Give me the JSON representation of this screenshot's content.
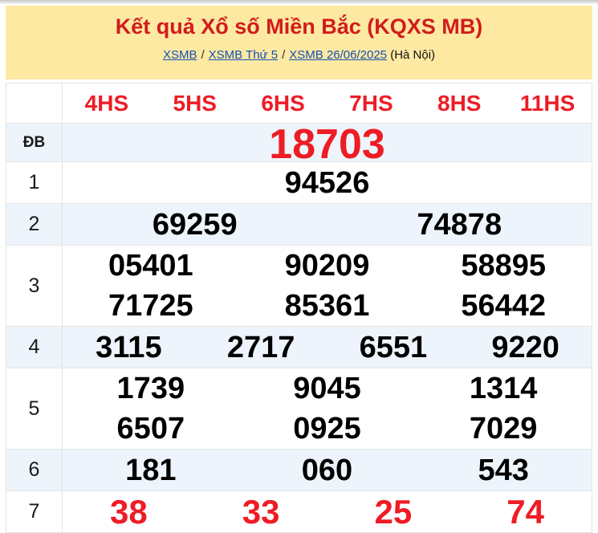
{
  "page": {
    "title": "Kết quả Xổ số Miền Bắc (KQXS MB)",
    "breadcrumb": {
      "items": [
        {
          "label": "XSMB"
        },
        {
          "label": "XSMB Thứ 5"
        },
        {
          "label": "XSMB 26/06/2025"
        }
      ],
      "separator": "/",
      "location": "(Hà Nội)"
    }
  },
  "results_table": {
    "column_headers": [
      "4HS",
      "5HS",
      "6HS",
      "7HS",
      "8HS",
      "11HS"
    ],
    "rows": [
      {
        "label": "ĐB",
        "lines": [
          [
            "18703"
          ]
        ]
      },
      {
        "label": "1",
        "lines": [
          [
            "94526"
          ]
        ]
      },
      {
        "label": "2",
        "lines": [
          [
            "69259",
            "74878"
          ]
        ]
      },
      {
        "label": "3",
        "lines": [
          [
            "05401",
            "90209",
            "58895"
          ],
          [
            "71725",
            "85361",
            "56442"
          ]
        ]
      },
      {
        "label": "4",
        "lines": [
          [
            "3115",
            "2717",
            "6551",
            "9220"
          ]
        ]
      },
      {
        "label": "5",
        "lines": [
          [
            "1739",
            "9045",
            "1314"
          ],
          [
            "6507",
            "0925",
            "7029"
          ]
        ]
      },
      {
        "label": "6",
        "lines": [
          [
            "181",
            "060",
            "543"
          ]
        ]
      },
      {
        "label": "7",
        "lines": [
          [
            "38",
            "33",
            "25",
            "74"
          ]
        ]
      }
    ]
  },
  "colors": {
    "banner_bg": "#fde9a2",
    "title_red": "#d21c1c",
    "value_red": "#ee1c25",
    "link_blue": "#1550b5",
    "alt_row_bg": "#edf4fb",
    "value_black": "#000000",
    "border_gray": "#e3e3e3"
  }
}
